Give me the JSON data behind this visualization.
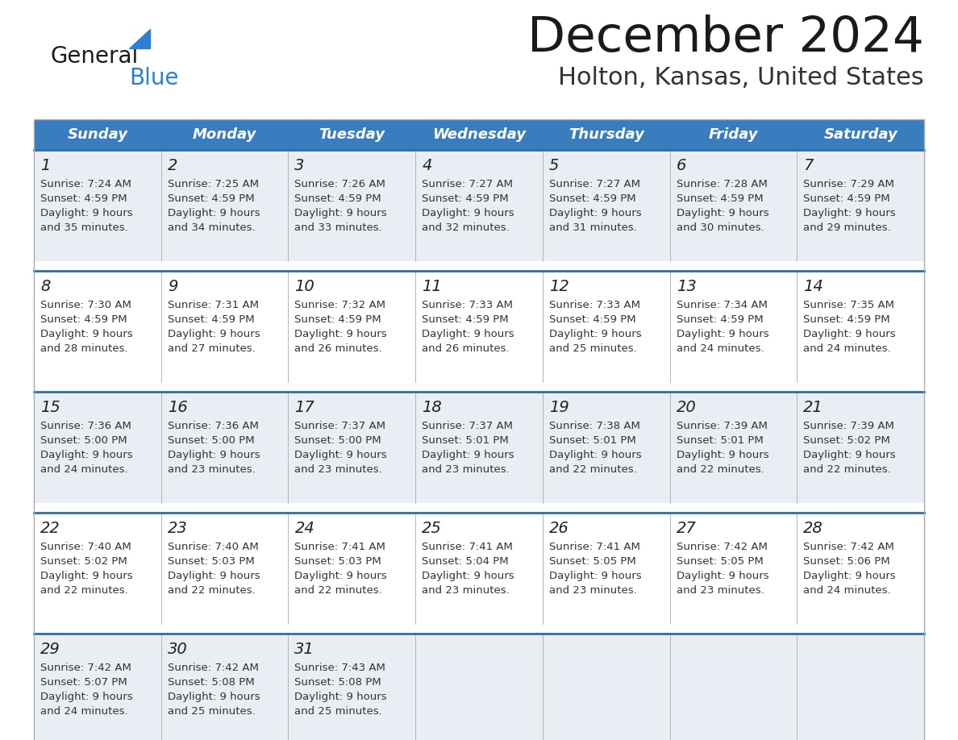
{
  "title": "December 2024",
  "subtitle": "Holton, Kansas, United States",
  "days_of_week": [
    "Sunday",
    "Monday",
    "Tuesday",
    "Wednesday",
    "Thursday",
    "Friday",
    "Saturday"
  ],
  "header_bg": "#3a7dbf",
  "header_text_color": "#ffffff",
  "cell_bg_light": "#e8eef4",
  "cell_bg_white": "#ffffff",
  "row_separator_color": "#2e6da4",
  "grid_color": "#aaaaaa",
  "title_color": "#1a1a1a",
  "subtitle_color": "#333333",
  "day_num_color": "#222222",
  "cell_text_color": "#333333",
  "logo_color1": "#1a1a1a",
  "logo_color2": "#2980d4",
  "logo_tri_color": "#2980d4",
  "calendar_data": [
    [
      {
        "day": "1",
        "sunrise": "7:24 AM",
        "sunset": "4:59 PM",
        "daylight_h": "9 hours",
        "daylight_m": "and 35 minutes."
      },
      {
        "day": "2",
        "sunrise": "7:25 AM",
        "sunset": "4:59 PM",
        "daylight_h": "9 hours",
        "daylight_m": "and 34 minutes."
      },
      {
        "day": "3",
        "sunrise": "7:26 AM",
        "sunset": "4:59 PM",
        "daylight_h": "9 hours",
        "daylight_m": "and 33 minutes."
      },
      {
        "day": "4",
        "sunrise": "7:27 AM",
        "sunset": "4:59 PM",
        "daylight_h": "9 hours",
        "daylight_m": "and 32 minutes."
      },
      {
        "day": "5",
        "sunrise": "7:27 AM",
        "sunset": "4:59 PM",
        "daylight_h": "9 hours",
        "daylight_m": "and 31 minutes."
      },
      {
        "day": "6",
        "sunrise": "7:28 AM",
        "sunset": "4:59 PM",
        "daylight_h": "9 hours",
        "daylight_m": "and 30 minutes."
      },
      {
        "day": "7",
        "sunrise": "7:29 AM",
        "sunset": "4:59 PM",
        "daylight_h": "9 hours",
        "daylight_m": "and 29 minutes."
      }
    ],
    [
      {
        "day": "8",
        "sunrise": "7:30 AM",
        "sunset": "4:59 PM",
        "daylight_h": "9 hours",
        "daylight_m": "and 28 minutes."
      },
      {
        "day": "9",
        "sunrise": "7:31 AM",
        "sunset": "4:59 PM",
        "daylight_h": "9 hours",
        "daylight_m": "and 27 minutes."
      },
      {
        "day": "10",
        "sunrise": "7:32 AM",
        "sunset": "4:59 PM",
        "daylight_h": "9 hours",
        "daylight_m": "and 26 minutes."
      },
      {
        "day": "11",
        "sunrise": "7:33 AM",
        "sunset": "4:59 PM",
        "daylight_h": "9 hours",
        "daylight_m": "and 26 minutes."
      },
      {
        "day": "12",
        "sunrise": "7:33 AM",
        "sunset": "4:59 PM",
        "daylight_h": "9 hours",
        "daylight_m": "and 25 minutes."
      },
      {
        "day": "13",
        "sunrise": "7:34 AM",
        "sunset": "4:59 PM",
        "daylight_h": "9 hours",
        "daylight_m": "and 24 minutes."
      },
      {
        "day": "14",
        "sunrise": "7:35 AM",
        "sunset": "4:59 PM",
        "daylight_h": "9 hours",
        "daylight_m": "and 24 minutes."
      }
    ],
    [
      {
        "day": "15",
        "sunrise": "7:36 AM",
        "sunset": "5:00 PM",
        "daylight_h": "9 hours",
        "daylight_m": "and 24 minutes."
      },
      {
        "day": "16",
        "sunrise": "7:36 AM",
        "sunset": "5:00 PM",
        "daylight_h": "9 hours",
        "daylight_m": "and 23 minutes."
      },
      {
        "day": "17",
        "sunrise": "7:37 AM",
        "sunset": "5:00 PM",
        "daylight_h": "9 hours",
        "daylight_m": "and 23 minutes."
      },
      {
        "day": "18",
        "sunrise": "7:37 AM",
        "sunset": "5:01 PM",
        "daylight_h": "9 hours",
        "daylight_m": "and 23 minutes."
      },
      {
        "day": "19",
        "sunrise": "7:38 AM",
        "sunset": "5:01 PM",
        "daylight_h": "9 hours",
        "daylight_m": "and 22 minutes."
      },
      {
        "day": "20",
        "sunrise": "7:39 AM",
        "sunset": "5:01 PM",
        "daylight_h": "9 hours",
        "daylight_m": "and 22 minutes."
      },
      {
        "day": "21",
        "sunrise": "7:39 AM",
        "sunset": "5:02 PM",
        "daylight_h": "9 hours",
        "daylight_m": "and 22 minutes."
      }
    ],
    [
      {
        "day": "22",
        "sunrise": "7:40 AM",
        "sunset": "5:02 PM",
        "daylight_h": "9 hours",
        "daylight_m": "and 22 minutes."
      },
      {
        "day": "23",
        "sunrise": "7:40 AM",
        "sunset": "5:03 PM",
        "daylight_h": "9 hours",
        "daylight_m": "and 22 minutes."
      },
      {
        "day": "24",
        "sunrise": "7:41 AM",
        "sunset": "5:03 PM",
        "daylight_h": "9 hours",
        "daylight_m": "and 22 minutes."
      },
      {
        "day": "25",
        "sunrise": "7:41 AM",
        "sunset": "5:04 PM",
        "daylight_h": "9 hours",
        "daylight_m": "and 23 minutes."
      },
      {
        "day": "26",
        "sunrise": "7:41 AM",
        "sunset": "5:05 PM",
        "daylight_h": "9 hours",
        "daylight_m": "and 23 minutes."
      },
      {
        "day": "27",
        "sunrise": "7:42 AM",
        "sunset": "5:05 PM",
        "daylight_h": "9 hours",
        "daylight_m": "and 23 minutes."
      },
      {
        "day": "28",
        "sunrise": "7:42 AM",
        "sunset": "5:06 PM",
        "daylight_h": "9 hours",
        "daylight_m": "and 24 minutes."
      }
    ],
    [
      {
        "day": "29",
        "sunrise": "7:42 AM",
        "sunset": "5:07 PM",
        "daylight_h": "9 hours",
        "daylight_m": "and 24 minutes."
      },
      {
        "day": "30",
        "sunrise": "7:42 AM",
        "sunset": "5:08 PM",
        "daylight_h": "9 hours",
        "daylight_m": "and 25 minutes."
      },
      {
        "day": "31",
        "sunrise": "7:43 AM",
        "sunset": "5:08 PM",
        "daylight_h": "9 hours",
        "daylight_m": "and 25 minutes."
      },
      null,
      null,
      null,
      null
    ]
  ]
}
